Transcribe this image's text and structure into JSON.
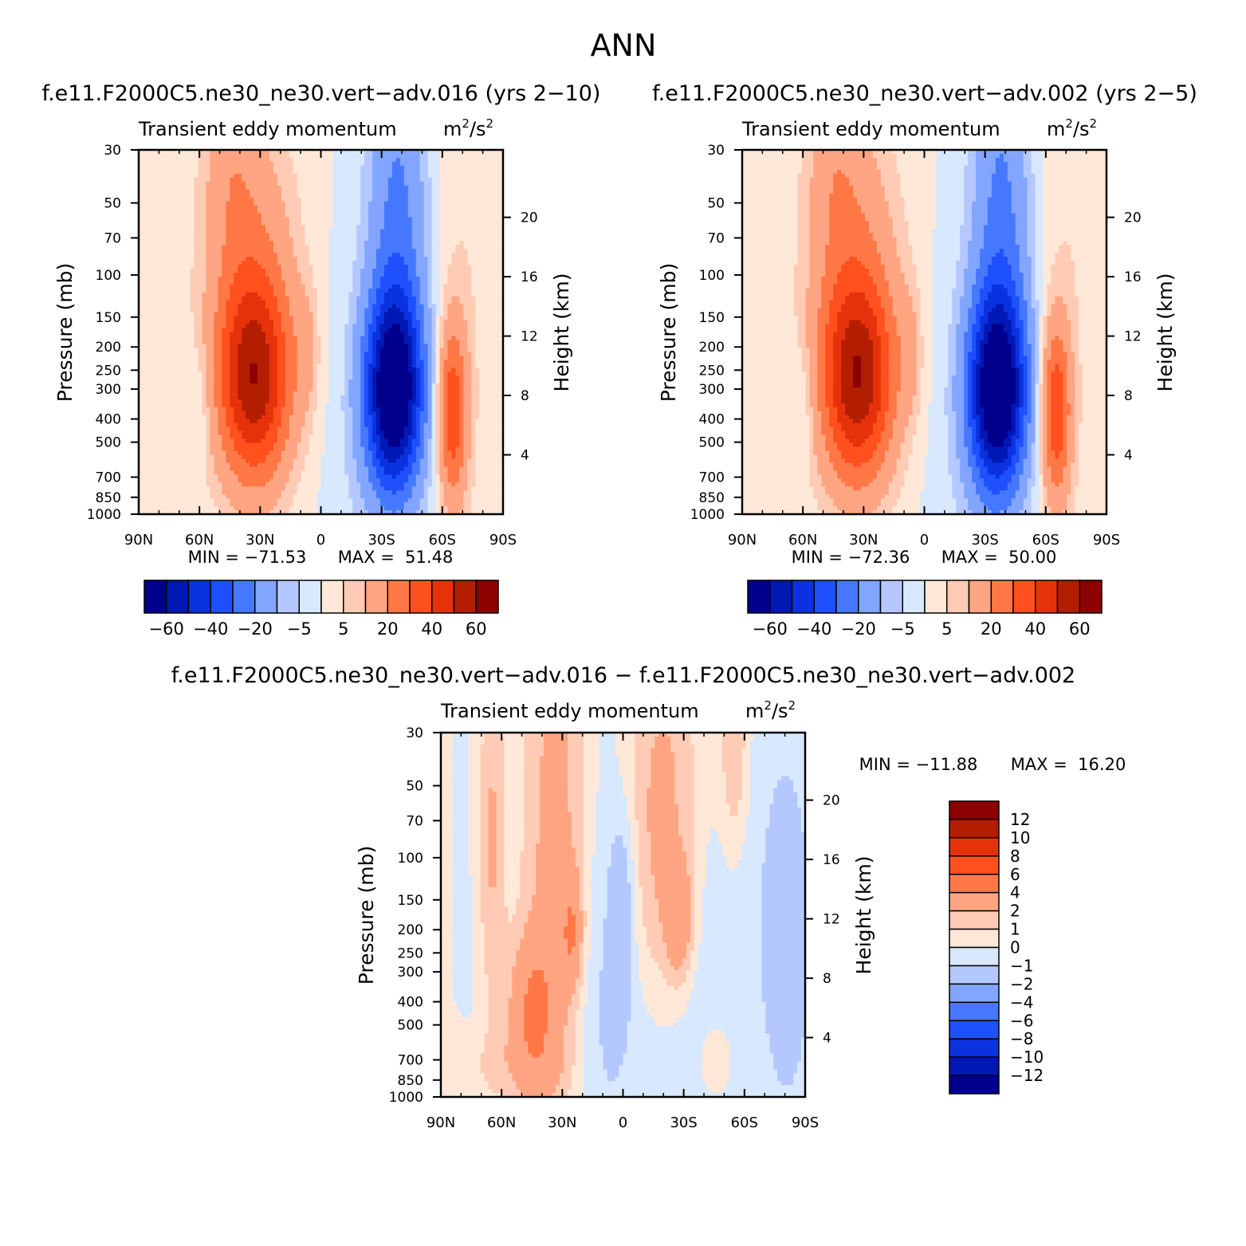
{
  "page_title": "ANN",
  "colors": {
    "scale": [
      "#00008c",
      "#0018b4",
      "#0a32de",
      "#1e50ff",
      "#4678ff",
      "#82a5ff",
      "#b4c8ff",
      "#d7e8ff",
      "#ffe8d7",
      "#ffcbb4",
      "#ffa582",
      "#ff7846",
      "#ff501e",
      "#e6320a",
      "#b41e00",
      "#8c0000"
    ]
  },
  "chart_data": [
    {
      "type": "heatmap",
      "title": "f.e11.F2000C5.ne30_ne30.vert−adv.016 (yrs 2−10)",
      "subtitle": "Transient eddy momentum",
      "units": "m²/s²",
      "units_base": "m",
      "units_mid": "/s",
      "units_exp": "2",
      "xlabel": "",
      "ylabel": "Pressure (mb)",
      "ylabel_right": "Height (km)",
      "x_ticks": [
        "90N",
        "60N",
        "30N",
        "0",
        "30S",
        "60S",
        "90S"
      ],
      "y_ticks": [
        "30",
        "50",
        "70",
        "100",
        "150",
        "200",
        "250",
        "300",
        "400",
        "500",
        "700",
        "850",
        "1000"
      ],
      "height_ticks": [
        "20",
        "16",
        "12",
        "8",
        "4"
      ],
      "min_label": "MIN = −71.53",
      "max_label": "MAX =  51.48",
      "min": -71.53,
      "max": 51.48,
      "levels": [
        -70,
        -60,
        -50,
        -40,
        -30,
        -20,
        -10,
        -5,
        0,
        5,
        10,
        20,
        30,
        40,
        50,
        60,
        70
      ],
      "legend_labels": [
        "−60",
        "−40",
        "−20",
        "−5",
        "5",
        "20",
        "40",
        "60"
      ]
    },
    {
      "type": "heatmap",
      "title": "f.e11.F2000C5.ne30_ne30.vert−adv.002 (yrs 2−5)",
      "subtitle": "Transient eddy momentum",
      "units": "m²/s²",
      "units_base": "m",
      "units_mid": "/s",
      "units_exp": "2",
      "xlabel": "",
      "ylabel": "Pressure (mb)",
      "ylabel_right": "Height (km)",
      "x_ticks": [
        "90N",
        "60N",
        "30N",
        "0",
        "30S",
        "60S",
        "90S"
      ],
      "y_ticks": [
        "30",
        "50",
        "70",
        "100",
        "150",
        "200",
        "250",
        "300",
        "400",
        "500",
        "700",
        "850",
        "1000"
      ],
      "height_ticks": [
        "20",
        "16",
        "12",
        "8",
        "4"
      ],
      "min_label": "MIN = −72.36",
      "max_label": "MAX =  50.00",
      "min": -72.36,
      "max": 50.0,
      "levels": [
        -70,
        -60,
        -50,
        -40,
        -30,
        -20,
        -10,
        -5,
        0,
        5,
        10,
        20,
        30,
        40,
        50,
        60,
        70
      ],
      "legend_labels": [
        "−60",
        "−40",
        "−20",
        "−5",
        "5",
        "20",
        "40",
        "60"
      ]
    },
    {
      "type": "heatmap",
      "title": "f.e11.F2000C5.ne30_ne30.vert−adv.016 − f.e11.F2000C5.ne30_ne30.vert−adv.002",
      "subtitle": "Transient eddy momentum",
      "units": "m²/s²",
      "units_base": "m",
      "units_mid": "/s",
      "units_exp": "2",
      "xlabel": "",
      "ylabel": "Pressure (mb)",
      "ylabel_right": "Height (km)",
      "x_ticks": [
        "90N",
        "60N",
        "30N",
        "0",
        "30S",
        "60S",
        "90S"
      ],
      "y_ticks": [
        "30",
        "50",
        "70",
        "100",
        "150",
        "200",
        "250",
        "300",
        "400",
        "500",
        "700",
        "850",
        "1000"
      ],
      "height_ticks": [
        "20",
        "16",
        "12",
        "8",
        "4"
      ],
      "min_label": "MIN = −11.88",
      "max_label": "MAX =  16.20",
      "min": -11.88,
      "max": 16.2,
      "levels": [
        -14,
        -12,
        -10,
        -8,
        -6,
        -4,
        -2,
        -1,
        0,
        1,
        2,
        4,
        6,
        8,
        10,
        12,
        14
      ],
      "legend_labels": [
        "12",
        "10",
        "8",
        "6",
        "4",
        "2",
        "1",
        "0",
        "−1",
        "−2",
        "−4",
        "−6",
        "−8",
        "−10",
        "−12"
      ]
    }
  ]
}
